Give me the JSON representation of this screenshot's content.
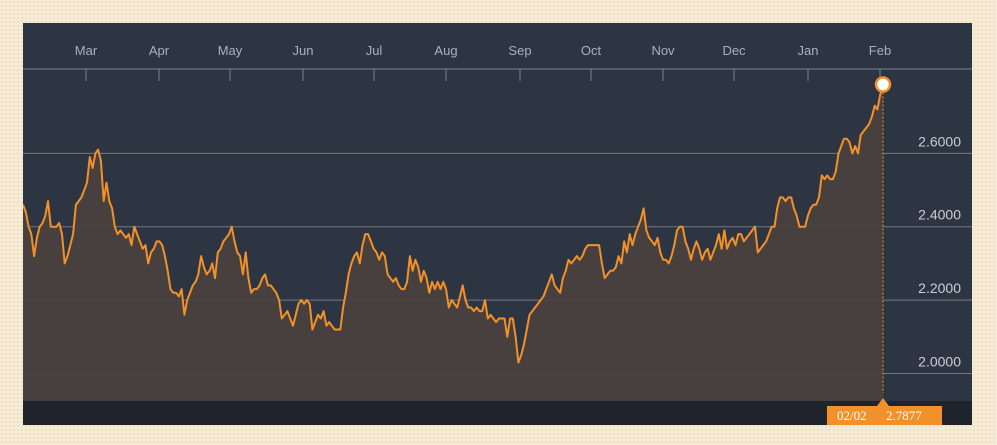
{
  "chart_data": {
    "type": "area",
    "title": "",
    "xlabel": "",
    "ylabel": "",
    "x_ticks": [
      "Mar",
      "Apr",
      "May",
      "Jun",
      "Jul",
      "Aug",
      "Sep",
      "Oct",
      "Nov",
      "Dec",
      "Jan",
      "Feb"
    ],
    "y_ticks": [
      "2.0000",
      "2.2000",
      "2.4000",
      "2.6000"
    ],
    "ylim": [
      1.925,
      2.83
    ],
    "grid": true,
    "colors": {
      "line": "#f2912a",
      "area": "#4a413e",
      "background": "#2d3542",
      "marker_box": "#f2912a"
    },
    "series": [
      {
        "values": [
          2.46,
          2.44,
          2.4,
          2.38,
          2.32,
          2.37,
          2.4,
          2.41,
          2.43,
          2.47,
          2.4,
          2.4,
          2.4,
          2.41,
          2.38,
          2.3,
          2.32,
          2.35,
          2.38,
          2.46,
          2.47,
          2.48,
          2.5,
          2.52,
          2.59,
          2.56,
          2.6,
          2.61,
          2.58,
          2.47,
          2.52,
          2.47,
          2.45,
          2.4,
          2.38,
          2.39,
          2.38,
          2.37,
          2.38,
          2.35,
          2.4,
          2.38,
          2.36,
          2.34,
          2.35,
          2.3,
          2.33,
          2.34,
          2.36,
          2.36,
          2.35,
          2.32,
          2.28,
          2.23,
          2.22,
          2.22,
          2.21,
          2.23,
          2.16,
          2.2,
          2.22,
          2.24,
          2.25,
          2.27,
          2.32,
          2.29,
          2.27,
          2.28,
          2.3,
          2.26,
          2.33,
          2.34,
          2.36,
          2.37,
          2.38,
          2.4,
          2.36,
          2.33,
          2.32,
          2.27,
          2.33,
          2.26,
          2.22,
          2.23,
          2.23,
          2.24,
          2.26,
          2.27,
          2.24,
          2.24,
          2.23,
          2.22,
          2.2,
          2.15,
          2.16,
          2.17,
          2.15,
          2.13,
          2.16,
          2.19,
          2.2,
          2.19,
          2.2,
          2.19,
          2.12,
          2.14,
          2.16,
          2.15,
          2.17,
          2.13,
          2.14,
          2.13,
          2.12,
          2.12,
          2.12,
          2.18,
          2.22,
          2.27,
          2.3,
          2.32,
          2.33,
          2.3,
          2.35,
          2.38,
          2.38,
          2.36,
          2.34,
          2.33,
          2.31,
          2.33,
          2.32,
          2.27,
          2.26,
          2.25,
          2.26,
          2.24,
          2.23,
          2.23,
          2.25,
          2.32,
          2.28,
          2.31,
          2.29,
          2.25,
          2.28,
          2.26,
          2.22,
          2.25,
          2.23,
          2.25,
          2.23,
          2.25,
          2.23,
          2.18,
          2.2,
          2.19,
          2.18,
          2.21,
          2.24,
          2.2,
          2.18,
          2.18,
          2.17,
          2.18,
          2.17,
          2.17,
          2.2,
          2.15,
          2.16,
          2.15,
          2.14,
          2.15,
          2.15,
          2.15,
          2.1,
          2.15,
          2.15,
          2.1,
          2.03,
          2.05,
          2.08,
          2.12,
          2.16,
          2.17,
          2.18,
          2.19,
          2.2,
          2.21,
          2.23,
          2.25,
          2.27,
          2.24,
          2.23,
          2.22,
          2.26,
          2.28,
          2.31,
          2.3,
          2.31,
          2.32,
          2.31,
          2.32,
          2.34,
          2.35,
          2.35,
          2.35,
          2.35,
          2.35,
          2.3,
          2.26,
          2.27,
          2.28,
          2.28,
          2.29,
          2.32,
          2.3,
          2.36,
          2.33,
          2.38,
          2.35,
          2.38,
          2.4,
          2.42,
          2.45,
          2.39,
          2.37,
          2.36,
          2.35,
          2.37,
          2.33,
          2.31,
          2.31,
          2.3,
          2.32,
          2.35,
          2.39,
          2.4,
          2.4,
          2.36,
          2.34,
          2.31,
          2.34,
          2.36,
          2.34,
          2.31,
          2.33,
          2.34,
          2.31,
          2.33,
          2.35,
          2.38,
          2.34,
          2.39,
          2.34,
          2.36,
          2.37,
          2.35,
          2.38,
          2.38,
          2.36,
          2.37,
          2.38,
          2.39,
          2.4,
          2.33,
          2.34,
          2.35,
          2.36,
          2.38,
          2.4,
          2.4,
          2.45,
          2.48,
          2.48,
          2.47,
          2.48,
          2.48,
          2.45,
          2.43,
          2.4,
          2.4,
          2.4,
          2.43,
          2.45,
          2.46,
          2.46,
          2.48,
          2.54,
          2.53,
          2.54,
          2.53,
          2.53,
          2.55,
          2.6,
          2.62,
          2.64,
          2.64,
          2.63,
          2.6,
          2.62,
          2.6,
          2.65,
          2.66,
          2.67,
          2.68,
          2.7,
          2.73,
          2.72,
          2.76,
          2.7877
        ]
      }
    ],
    "marker": {
      "date": "02/02",
      "value": "2.7877"
    }
  }
}
